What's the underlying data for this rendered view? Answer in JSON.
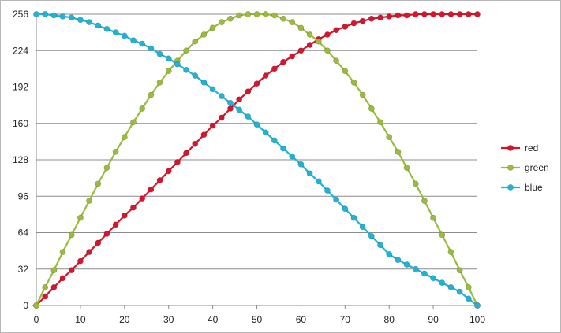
{
  "chart_data": {
    "type": "line",
    "title": "",
    "xlabel": "",
    "ylabel": "",
    "xlim": [
      0,
      100
    ],
    "ylim": [
      0,
      256
    ],
    "x_ticks": [
      0,
      10,
      20,
      30,
      40,
      50,
      60,
      70,
      80,
      90,
      100
    ],
    "y_ticks": [
      0,
      32,
      64,
      96,
      128,
      160,
      192,
      224,
      256
    ],
    "grid": "horizontal",
    "legend_position": "right",
    "x": [
      0,
      2,
      4,
      6,
      8,
      10,
      12,
      14,
      16,
      18,
      20,
      22,
      24,
      26,
      28,
      30,
      32,
      34,
      36,
      38,
      40,
      42,
      44,
      46,
      48,
      50,
      52,
      54,
      56,
      58,
      60,
      62,
      64,
      66,
      68,
      70,
      72,
      74,
      76,
      78,
      80,
      82,
      84,
      86,
      88,
      90,
      92,
      94,
      96,
      98,
      100
    ],
    "series": [
      {
        "name": "red",
        "color": "#d8152c",
        "values": [
          0,
          8,
          16,
          24,
          31,
          39,
          47,
          55,
          63,
          71,
          79,
          86,
          94,
          102,
          110,
          118,
          126,
          134,
          142,
          150,
          158,
          165,
          173,
          181,
          188,
          195,
          202,
          208,
          214,
          219,
          224,
          229,
          234,
          238,
          242,
          245,
          248,
          250,
          252,
          253,
          254,
          255,
          255,
          256,
          256,
          256,
          256,
          256,
          256,
          256,
          256
        ]
      },
      {
        "name": "green",
        "color": "#9bbb3c",
        "values": [
          0,
          16,
          31,
          47,
          62,
          77,
          92,
          107,
          121,
          135,
          148,
          161,
          173,
          185,
          196,
          206,
          215,
          224,
          232,
          238,
          244,
          249,
          252,
          255,
          256,
          256,
          256,
          255,
          252,
          249,
          244,
          238,
          232,
          224,
          215,
          206,
          196,
          185,
          173,
          161,
          148,
          135,
          121,
          107,
          92,
          77,
          62,
          47,
          31,
          16,
          0
        ]
      },
      {
        "name": "blue",
        "color": "#1fb3d6",
        "values": [
          256,
          256,
          255,
          254,
          253,
          251,
          249,
          246,
          243,
          240,
          237,
          233,
          230,
          226,
          221,
          217,
          212,
          207,
          202,
          196,
          190,
          184,
          178,
          172,
          166,
          159,
          152,
          145,
          138,
          131,
          124,
          116,
          109,
          101,
          93,
          85,
          77,
          69,
          61,
          53,
          45,
          40,
          36,
          32,
          28,
          24,
          20,
          16,
          12,
          6,
          0
        ]
      }
    ]
  }
}
